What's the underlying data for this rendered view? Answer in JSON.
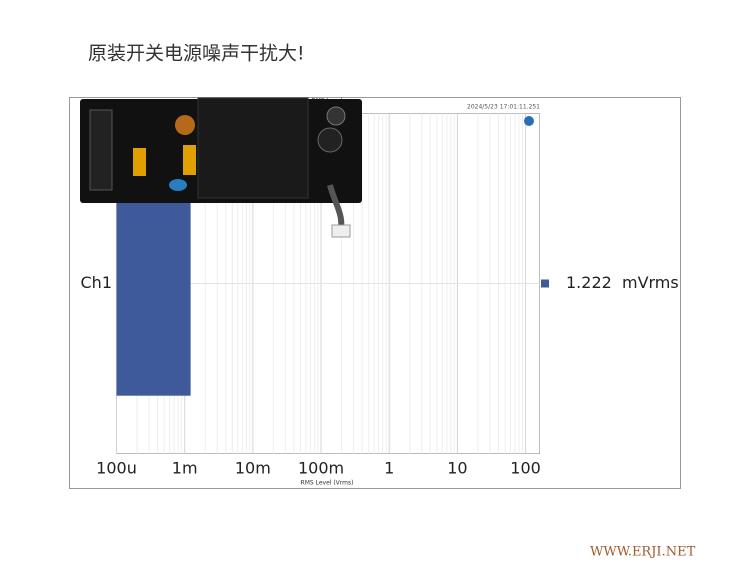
{
  "page_title": "原装开关电源噪声干扰大!",
  "chart_data": {
    "type": "bar",
    "orientation": "horizontal",
    "header": "RMS Level",
    "timestamp": "2024/5/23 17:01:11.251",
    "categories": [
      "Ch1"
    ],
    "values": [
      0.001222
    ],
    "value_labels": [
      "1.222  mVrms"
    ],
    "color": "#3f5a9a",
    "xlabel": "RMS Level (Vrms)",
    "xscale": "log",
    "xlim": [
      0.0001,
      160
    ],
    "xticks": [
      {
        "value": 0.0001,
        "label": "100u"
      },
      {
        "value": 0.001,
        "label": "1m"
      },
      {
        "value": 0.01,
        "label": "10m"
      },
      {
        "value": 0.1,
        "label": "100m"
      },
      1,
      10,
      100
    ],
    "grid": true
  },
  "watermark": "WWW.ERJI.NET"
}
